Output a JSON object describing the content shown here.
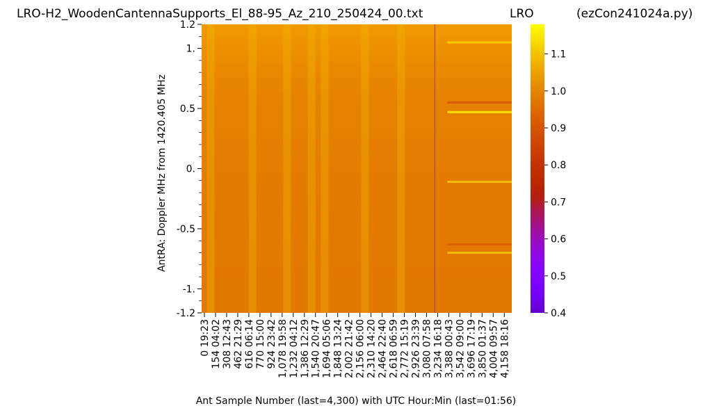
{
  "chart_data": {
    "type": "heatmap",
    "title_left": "LRO-H2_WoodenCantennaSupports_El_88-95_Az_210_250424_00.txt",
    "title_center": "LRO",
    "title_right": "(ezCon241024a.py)",
    "xlabel": "Ant Sample Number (last=4,300) with UTC Hour:Min (last=01:56)",
    "ylabel": "AntRA:  Doppler MHz from 1420.405 MHz",
    "x_range": [
      0,
      4300
    ],
    "ylim": [
      -1.2,
      1.2
    ],
    "x_ticks": [
      {
        "sample": 0,
        "label": "0  19:23"
      },
      {
        "sample": 154,
        "label": "154  04:02"
      },
      {
        "sample": 308,
        "label": "308  12:43"
      },
      {
        "sample": 462,
        "label": "462  21:29"
      },
      {
        "sample": 616,
        "label": "616  06:14"
      },
      {
        "sample": 770,
        "label": "770  15:00"
      },
      {
        "sample": 924,
        "label": "924  23:42"
      },
      {
        "sample": 1078,
        "label": "1,078  19:58"
      },
      {
        "sample": 1232,
        "label": "1,232  04:12"
      },
      {
        "sample": 1386,
        "label": "1,386  12:29"
      },
      {
        "sample": 1540,
        "label": "1,540  20:47"
      },
      {
        "sample": 1694,
        "label": "1,694  05:06"
      },
      {
        "sample": 1848,
        "label": "1,848  13:24"
      },
      {
        "sample": 2002,
        "label": "2,002  21:42"
      },
      {
        "sample": 2156,
        "label": "2,156  06:00"
      },
      {
        "sample": 2310,
        "label": "2,310  14:20"
      },
      {
        "sample": 2464,
        "label": "2,464  22:40"
      },
      {
        "sample": 2618,
        "label": "2,618  06:59"
      },
      {
        "sample": 2772,
        "label": "2,772  15:19"
      },
      {
        "sample": 2926,
        "label": "2,926  23:39"
      },
      {
        "sample": 3080,
        "label": "3,080  07:58"
      },
      {
        "sample": 3234,
        "label": "3,234  16:18"
      },
      {
        "sample": 3388,
        "label": "3,388  00:43"
      },
      {
        "sample": 3542,
        "label": "3,542  09:00"
      },
      {
        "sample": 3696,
        "label": "3,696  17:19"
      },
      {
        "sample": 3850,
        "label": "3,850  01:37"
      },
      {
        "sample": 4004,
        "label": "4,004  09:57"
      },
      {
        "sample": 4158,
        "label": "4,158  18:16"
      }
    ],
    "y_ticks": [
      {
        "value": 1.2,
        "label": "1.2"
      },
      {
        "value": 1.0,
        "label": "1."
      },
      {
        "value": 0.5,
        "label": "0.5"
      },
      {
        "value": 0.0,
        "label": "0."
      },
      {
        "value": -0.5,
        "label": "-0.5"
      },
      {
        "value": -1.0,
        "label": "-1."
      },
      {
        "value": -1.2,
        "label": "-1.2"
      }
    ],
    "y_minor_step": 0.1,
    "colorbar": {
      "colormap": "gnuplot",
      "range": [
        0.4,
        1.18
      ],
      "ticks": [
        {
          "value": 1.1,
          "label": "1.1"
        },
        {
          "value": 1.0,
          "label": "1.0"
        },
        {
          "value": 0.9,
          "label": "0.9"
        },
        {
          "value": 0.8,
          "label": "0.8"
        },
        {
          "value": 0.7,
          "label": "0.7"
        },
        {
          "value": 0.6,
          "label": "0.6"
        },
        {
          "value": 0.5,
          "label": "0.5"
        },
        {
          "value": 0.4,
          "label": "0.4"
        }
      ]
    },
    "base_value": 1.0,
    "bright_column_samples": [
      120,
      700,
      1180,
      1520,
      1700,
      2260,
      2760
    ],
    "vertical_marker_sample": 3234,
    "horizontal_features_from_sample_3234": [
      {
        "doppler": 1.05,
        "value": 1.12
      },
      {
        "doppler": 0.55,
        "value": 0.9
      },
      {
        "doppler": 0.47,
        "value": 1.15
      },
      {
        "doppler": -0.11,
        "value": 1.1
      },
      {
        "doppler": -0.7,
        "value": 1.1
      },
      {
        "doppler": -0.63,
        "value": 0.92
      }
    ]
  }
}
